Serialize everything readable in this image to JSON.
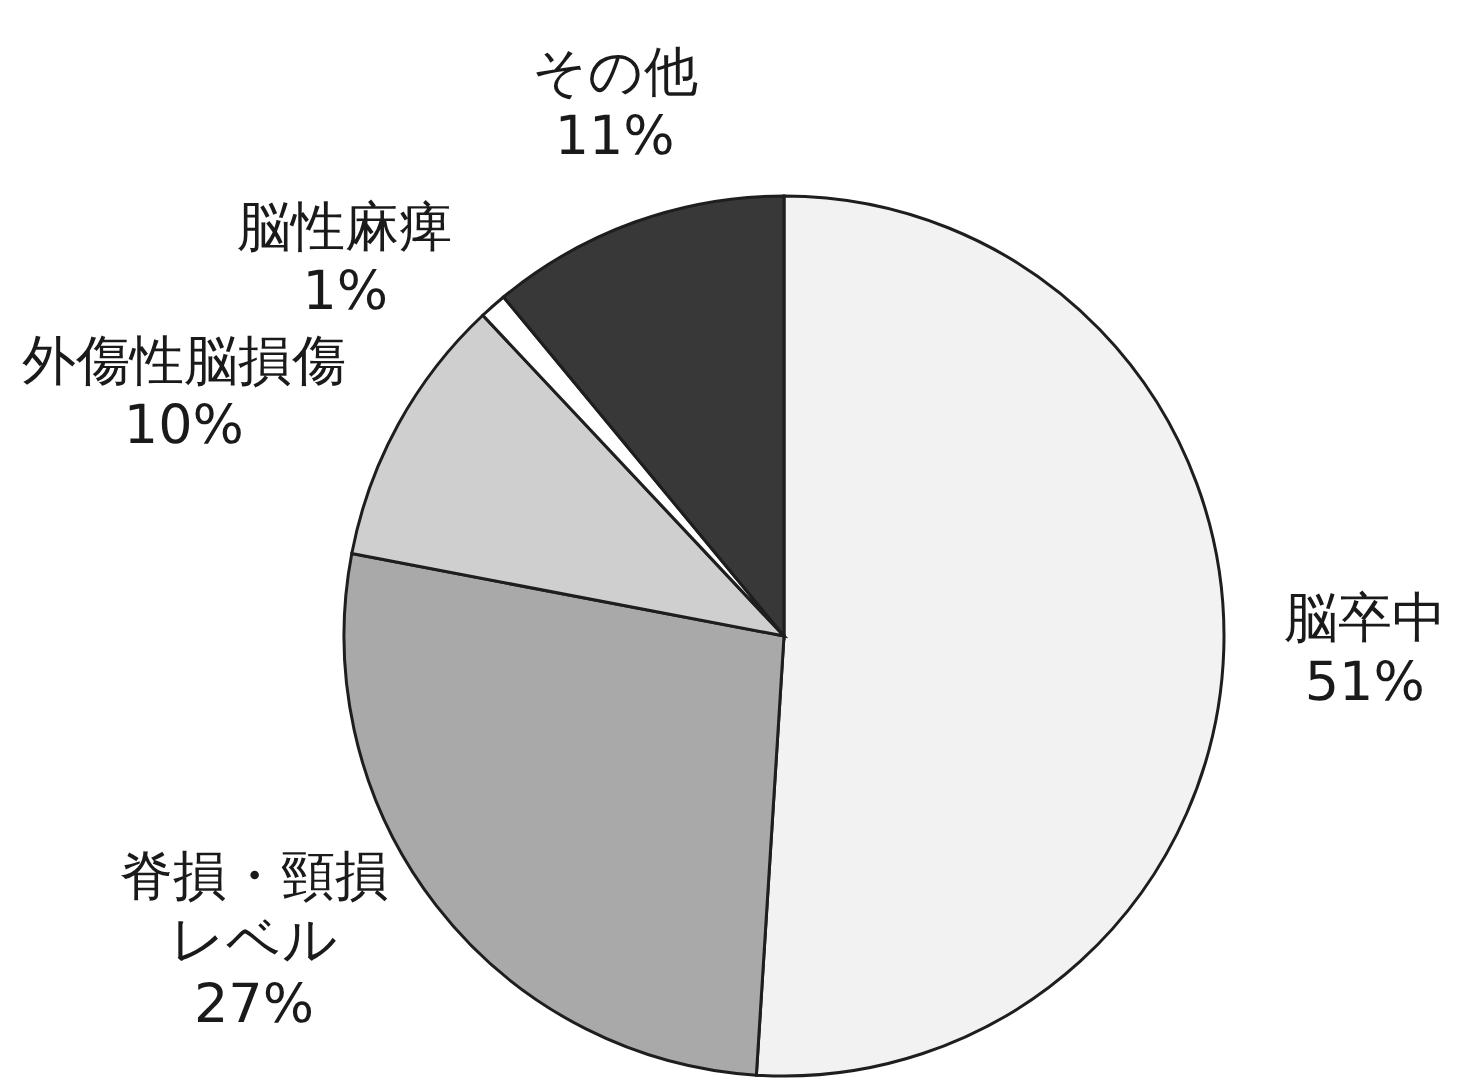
{
  "chart_data": {
    "type": "pie",
    "categories": [
      "脳卒中",
      "脊損・頸損レベル",
      "外傷性脳損傷",
      "脳性麻痺",
      "その他"
    ],
    "values": [
      51,
      27,
      10,
      1,
      11
    ],
    "value_labels": [
      "51%",
      "27%",
      "10%",
      "1%",
      "11%"
    ],
    "colors": [
      "#f2f2f2",
      "#a9a9a9",
      "#cfcfcf",
      "#ffffff",
      "#383838"
    ]
  }
}
